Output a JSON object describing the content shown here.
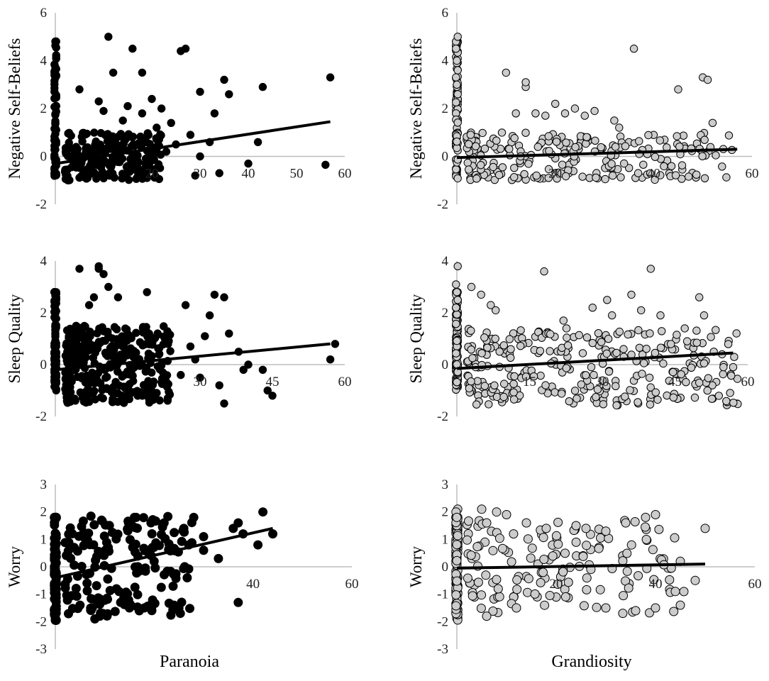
{
  "chart_data": [
    {
      "type": "scatter",
      "panel": "top-left",
      "xlabel": "",
      "ylabel": "Negative Self-Beliefs",
      "ylim": [
        -2,
        6
      ],
      "yticks": [
        -2,
        0,
        2,
        4,
        6
      ],
      "xlim": [
        0,
        60
      ],
      "xticks": [
        20,
        30,
        40,
        50,
        60
      ],
      "marker_color": "#000000",
      "trend_y": [
        -0.3,
        1.45
      ],
      "seed": 11,
      "n_axis": 70,
      "n_bulk": 230,
      "bulk_x": [
        2,
        22
      ],
      "bulk_y": [
        -1,
        1
      ],
      "points": [
        [
          5,
          2.8
        ],
        [
          11,
          5
        ],
        [
          12,
          3.5
        ],
        [
          16,
          4.5
        ],
        [
          18,
          3.5
        ],
        [
          26,
          4.4
        ],
        [
          27,
          4.5
        ],
        [
          30,
          2.7
        ],
        [
          35,
          3.2
        ],
        [
          36,
          2.6
        ],
        [
          43,
          2.9
        ],
        [
          57,
          3.3
        ],
        [
          32,
          0.6
        ],
        [
          28,
          0.9
        ],
        [
          34,
          -0.7
        ],
        [
          40,
          -0.3
        ],
        [
          42,
          0.6
        ],
        [
          56,
          -0.35
        ],
        [
          29,
          -0.8
        ],
        [
          24,
          1.4
        ],
        [
          20,
          2.4
        ],
        [
          22,
          2.0
        ],
        [
          15,
          2.1
        ],
        [
          9,
          2.3
        ],
        [
          10,
          1.9
        ],
        [
          14,
          1.5
        ],
        [
          18,
          1.8
        ],
        [
          21,
          1.2
        ],
        [
          25,
          0.5
        ],
        [
          30,
          0.0
        ],
        [
          33,
          1.8
        ],
        [
          19,
          -0.9
        ],
        [
          23,
          0.2
        ]
      ]
    },
    {
      "type": "scatter",
      "panel": "top-right",
      "xlabel": "",
      "ylabel": "Negative Self-Beliefs",
      "ylim": [
        -2,
        6
      ],
      "yticks": [
        -2,
        0,
        2,
        4,
        6
      ],
      "xlim": [
        0,
        60
      ],
      "xticks": [
        20,
        40,
        60
      ],
      "marker_color": "#cccccc",
      "trend_y": [
        -0.05,
        0.3
      ],
      "seed": 23,
      "n_axis": 90,
      "n_bulk": 230,
      "bulk_x": [
        2,
        56
      ],
      "bulk_y": [
        -1,
        1
      ],
      "points": [
        [
          0,
          5
        ],
        [
          0,
          4.5
        ],
        [
          0,
          4
        ],
        [
          0,
          3.6
        ],
        [
          0,
          3.3
        ],
        [
          0,
          3
        ],
        [
          0,
          2.6
        ],
        [
          10,
          3.5
        ],
        [
          14,
          2.9
        ],
        [
          14,
          3.1
        ],
        [
          16,
          1.8
        ],
        [
          18,
          1.7
        ],
        [
          20,
          2.2
        ],
        [
          22,
          1.8
        ],
        [
          24,
          2.0
        ],
        [
          28,
          1.9
        ],
        [
          32,
          1.5
        ],
        [
          33,
          1.2
        ],
        [
          36,
          4.5
        ],
        [
          45,
          2.8
        ],
        [
          50,
          3.3
        ],
        [
          51,
          3.2
        ],
        [
          52,
          1.4
        ],
        [
          26,
          1.7
        ],
        [
          12,
          1.8
        ]
      ]
    },
    {
      "type": "scatter",
      "panel": "middle-left",
      "xlabel": "",
      "ylabel": "Sleep Quality",
      "ylim": [
        -2,
        4
      ],
      "yticks": [
        -2,
        0,
        2,
        4
      ],
      "xlim": [
        0,
        60
      ],
      "xticks": [
        30,
        45,
        60
      ],
      "marker_color": "#000000",
      "trend_y": [
        -0.2,
        0.8
      ],
      "seed": 37,
      "n_axis": 90,
      "n_bulk": 320,
      "bulk_x": [
        2,
        24
      ],
      "bulk_y": [
        -1.5,
        1.5
      ],
      "points": [
        [
          5,
          3.7
        ],
        [
          9,
          3.7
        ],
        [
          9,
          3.8
        ],
        [
          10,
          3.5
        ],
        [
          11,
          3.0
        ],
        [
          7,
          2.3
        ],
        [
          8,
          2.6
        ],
        [
          13,
          2.6
        ],
        [
          19,
          2.8
        ],
        [
          27,
          2.3
        ],
        [
          32,
          1.9
        ],
        [
          33,
          2.7
        ],
        [
          35,
          2.6
        ],
        [
          36,
          1.2
        ],
        [
          38,
          0.5
        ],
        [
          39,
          -0.2
        ],
        [
          43,
          -0.2
        ],
        [
          44,
          -1.0
        ],
        [
          45,
          -1.2
        ],
        [
          57,
          0.2
        ],
        [
          58,
          0.8
        ],
        [
          35,
          -1.5
        ],
        [
          28,
          0.7
        ],
        [
          30,
          -0.5
        ],
        [
          26,
          -0.4
        ],
        [
          40,
          0.0
        ],
        [
          31,
          1.1
        ],
        [
          34,
          -0.8
        ],
        [
          29,
          0.2
        ]
      ]
    },
    {
      "type": "scatter",
      "panel": "middle-right",
      "xlabel": "",
      "ylabel": "Sleep Quality",
      "ylim": [
        -2,
        4
      ],
      "yticks": [
        -2,
        0,
        2,
        4
      ],
      "xlim": [
        0,
        60
      ],
      "xticks": [
        15,
        30,
        45,
        60
      ],
      "marker_color": "#cccccc",
      "trend_y": [
        -0.15,
        0.45
      ],
      "seed": 53,
      "n_axis": 110,
      "n_bulk": 300,
      "bulk_x": [
        2,
        58
      ],
      "bulk_y": [
        -1.6,
        1.4
      ],
      "points": [
        [
          0,
          3.8
        ],
        [
          0,
          3.1
        ],
        [
          0,
          2.8
        ],
        [
          0,
          2.5
        ],
        [
          0,
          2.2
        ],
        [
          3,
          3.0
        ],
        [
          5,
          2.7
        ],
        [
          7,
          2.3
        ],
        [
          8,
          2.1
        ],
        [
          18,
          3.6
        ],
        [
          22,
          1.7
        ],
        [
          28,
          2.2
        ],
        [
          31,
          2.5
        ],
        [
          32,
          1.9
        ],
        [
          36,
          2.7
        ],
        [
          38,
          2.1
        ],
        [
          40,
          3.7
        ],
        [
          42,
          1.9
        ],
        [
          47,
          1.4
        ],
        [
          50,
          2.6
        ],
        [
          51,
          1.9
        ],
        [
          53,
          0.5
        ],
        [
          55,
          -0.1
        ],
        [
          57,
          -0.1
        ],
        [
          50,
          -0.7
        ]
      ]
    },
    {
      "type": "scatter",
      "panel": "bottom-left",
      "xlabel": "Paranoia",
      "ylabel": "Worry",
      "ylim": [
        -3,
        3
      ],
      "yticks": [
        -3,
        -2,
        -1,
        0,
        1,
        2,
        3
      ],
      "xlim": [
        0,
        60
      ],
      "xticks": [
        40,
        60
      ],
      "marker_color": "#000000",
      "trend_y": [
        -0.4,
        1.4
      ],
      "trend_x_end": 44,
      "seed": 71,
      "n_axis": 90,
      "n_bulk": 170,
      "bulk_x": [
        2,
        28
      ],
      "bulk_y": [
        -1.8,
        1.9
      ],
      "points": [
        [
          42,
          2.0
        ],
        [
          44,
          1.2
        ],
        [
          41,
          0.8
        ],
        [
          37,
          1.6
        ],
        [
          36,
          1.4
        ],
        [
          38,
          1.2
        ],
        [
          30,
          1.1
        ],
        [
          30,
          0.6
        ],
        [
          33,
          0.3
        ],
        [
          37,
          -1.3
        ],
        [
          28,
          1.8
        ],
        [
          26,
          1.4
        ],
        [
          25,
          -1.5
        ],
        [
          24,
          -1.4
        ],
        [
          18,
          -1.5
        ],
        [
          15,
          -1.5
        ],
        [
          8,
          -1.9
        ],
        [
          9,
          -1.8
        ],
        [
          5,
          -1.4
        ],
        [
          20,
          0.2
        ],
        [
          16,
          1.8
        ],
        [
          22,
          1.6
        ],
        [
          27,
          0.8
        ]
      ]
    },
    {
      "type": "scatter",
      "panel": "bottom-right",
      "xlabel": "Grandiosity",
      "ylabel": "Worry",
      "ylim": [
        -3,
        3
      ],
      "yticks": [
        -3,
        -2,
        -1,
        0,
        1,
        2,
        3
      ],
      "xlim": [
        0,
        60
      ],
      "xticks": [
        20,
        40,
        60
      ],
      "marker_color": "#cccccc",
      "trend_y": [
        -0.05,
        0.1
      ],
      "trend_x_end": 50,
      "seed": 89,
      "n_axis": 110,
      "n_bulk": 150,
      "bulk_x": [
        2,
        48
      ],
      "bulk_y": [
        -1.7,
        1.7
      ],
      "points": [
        [
          0,
          2.1
        ],
        [
          0,
          2.0
        ],
        [
          0,
          1.8
        ],
        [
          5,
          2.1
        ],
        [
          8,
          2.0
        ],
        [
          10,
          1.9
        ],
        [
          6,
          1.6
        ],
        [
          14,
          1.6
        ],
        [
          18,
          1.4
        ],
        [
          24,
          1.5
        ],
        [
          26,
          1.4
        ],
        [
          30,
          1.3
        ],
        [
          34,
          1.6
        ],
        [
          38,
          1.8
        ],
        [
          40,
          1.9
        ],
        [
          50,
          1.4
        ],
        [
          48,
          -0.5
        ],
        [
          45,
          -1.4
        ],
        [
          44,
          -0.9
        ],
        [
          45,
          0.2
        ],
        [
          40,
          -1.5
        ],
        [
          36,
          -1.6
        ],
        [
          30,
          -1.5
        ],
        [
          12,
          -1.5
        ],
        [
          6,
          -1.8
        ]
      ]
    }
  ]
}
